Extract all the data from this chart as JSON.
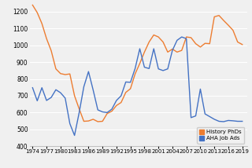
{
  "title": "",
  "xlabel": "",
  "ylabel": "",
  "ylim": [
    400,
    1250
  ],
  "yticks": [
    400,
    500,
    600,
    700,
    800,
    900,
    1000,
    1100,
    1200
  ],
  "background_color": "#f0f0f0",
  "aha_color": "#4472c4",
  "phd_color": "#ed7d31",
  "years": [
    1974,
    1975,
    1976,
    1977,
    1978,
    1979,
    1980,
    1981,
    1982,
    1983,
    1984,
    1985,
    1986,
    1987,
    1988,
    1989,
    1990,
    1991,
    1992,
    1993,
    1994,
    1995,
    1996,
    1997,
    1998,
    1999,
    2000,
    2001,
    2002,
    2003,
    2004,
    2005,
    2006,
    2007,
    2008,
    2009,
    2010,
    2011,
    2012,
    2013,
    2014,
    2015,
    2016,
    2017,
    2018,
    2019
  ],
  "aha_jobs": [
    748,
    670,
    748,
    672,
    690,
    736,
    718,
    686,
    534,
    464,
    600,
    754,
    844,
    734,
    616,
    604,
    600,
    620,
    672,
    700,
    782,
    780,
    862,
    980,
    870,
    862,
    980,
    860,
    850,
    860,
    970,
    1030,
    1050,
    1040,
    570,
    580,
    740,
    592,
    576,
    560,
    548,
    546,
    553,
    551,
    548,
    548
  ],
  "history_phds": [
    1240,
    1195,
    1130,
    1040,
    968,
    860,
    832,
    826,
    830,
    700,
    622,
    548,
    550,
    560,
    546,
    548,
    594,
    608,
    642,
    660,
    720,
    742,
    830,
    892,
    960,
    1020,
    1062,
    1050,
    1020,
    960,
    978,
    960,
    970,
    1050,
    1046,
    1010,
    990,
    1012,
    1010,
    1170,
    1178,
    1148,
    1120,
    1090,
    1020,
    1005
  ],
  "xtick_years": [
    1974,
    1977,
    1980,
    1983,
    1986,
    1989,
    1992,
    1995,
    1998,
    2001,
    2004,
    2007,
    2010,
    2013,
    2016,
    2019
  ],
  "legend_labels": [
    "AHA Job Ads",
    "History PhDs"
  ],
  "line_width": 1.0
}
